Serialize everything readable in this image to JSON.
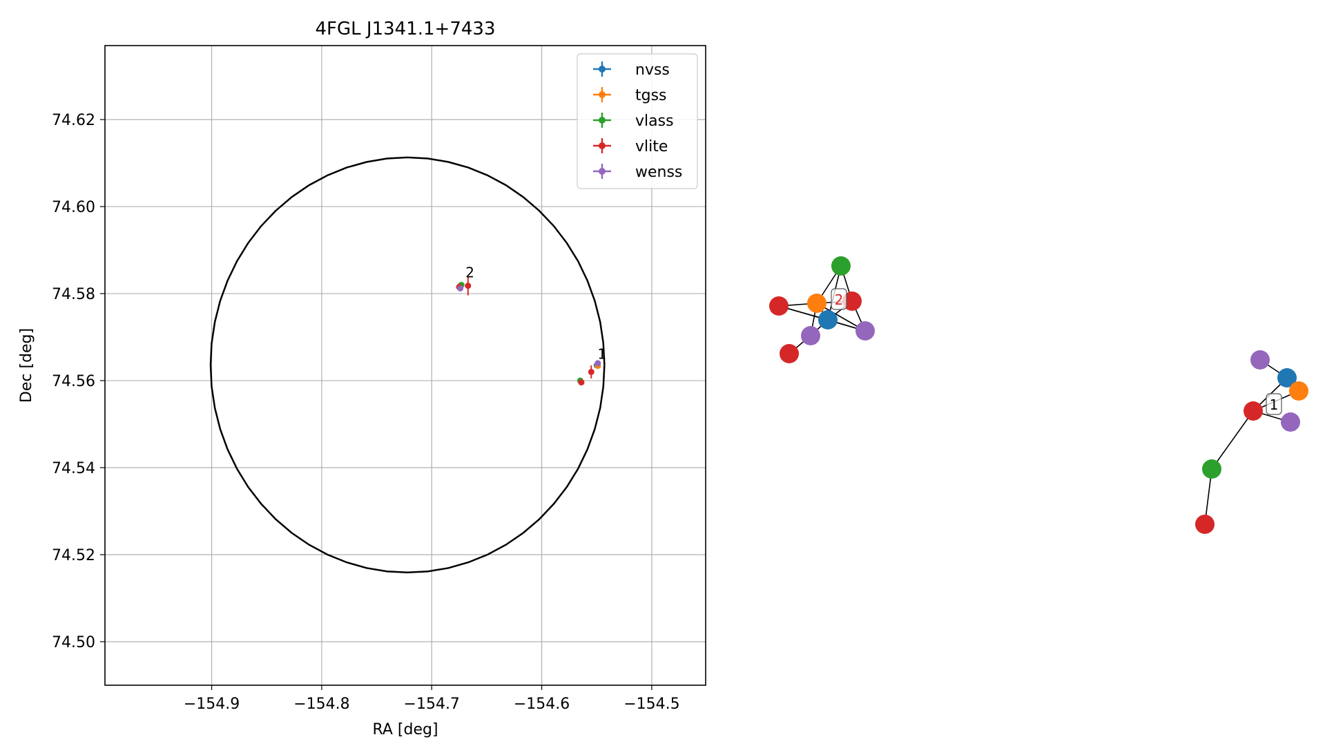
{
  "chart_data": [
    {
      "type": "scatter",
      "title": "4FGL J1341.1+7433",
      "xlabel": "RA [deg]",
      "ylabel": "Dec [deg]",
      "xlim": [
        -154.997,
        -154.451
      ],
      "ylim": [
        74.49,
        74.637
      ],
      "xticks": [
        -154.9,
        -154.8,
        -154.7,
        -154.6,
        -154.5
      ],
      "xtick_labels": [
        "−154.9",
        "−154.8",
        "−154.7",
        "−154.6",
        "−154.5"
      ],
      "yticks": [
        74.5,
        74.52,
        74.54,
        74.56,
        74.58,
        74.6,
        74.62
      ],
      "ytick_labels": [
        "74.50",
        "74.52",
        "74.54",
        "74.56",
        "74.58",
        "74.60",
        "74.62"
      ],
      "grid": true,
      "legend_position": "top-right",
      "ellipse": {
        "center": [
          -154.722,
          74.5636
        ],
        "radius_ra": 0.179,
        "radius_dec": 0.0477,
        "color": "#000000"
      },
      "series": [
        {
          "name": "nvss",
          "color": "#1f77b4",
          "points": [
            {
              "x": -154.674,
              "y": 74.5816
            },
            {
              "x": -154.55,
              "y": 74.5635
            }
          ]
        },
        {
          "name": "tgss",
          "color": "#ff7f0e",
          "points": [
            {
              "x": -154.674,
              "y": 74.5818
            },
            {
              "x": -154.549,
              "y": 74.5634
            }
          ]
        },
        {
          "name": "vlass",
          "color": "#2ca02c",
          "points": [
            {
              "x": -154.673,
              "y": 74.582
            },
            {
              "x": -154.565,
              "y": 74.56
            }
          ]
        },
        {
          "name": "vlite",
          "color": "#d62728",
          "points": [
            {
              "x": -154.675,
              "y": 74.5815,
              "yerr": 0.0008
            },
            {
              "x": -154.667,
              "y": 74.5818,
              "yerr": 0.0022
            },
            {
              "x": -154.555,
              "y": 74.562,
              "yerr": 0.0015
            },
            {
              "x": -154.564,
              "y": 74.5596
            }
          ]
        },
        {
          "name": "wenss",
          "color": "#9467bd",
          "points": [
            {
              "x": -154.674,
              "y": 74.5812
            },
            {
              "x": -154.549,
              "y": 74.564
            }
          ]
        }
      ],
      "annotations": [
        {
          "text": "2",
          "x": -154.668,
          "y": 74.5825
        },
        {
          "text": "1",
          "x": -154.548,
          "y": 74.5637
        }
      ]
    },
    {
      "type": "network",
      "clusters": [
        {
          "label": "2",
          "label_color": "#d62728",
          "nodes": [
            {
              "id": "g",
              "color": "#2ca02c"
            },
            {
              "id": "o",
              "color": "#ff7f0e"
            },
            {
              "id": "r1",
              "color": "#d62728"
            },
            {
              "id": "r2",
              "color": "#d62728"
            },
            {
              "id": "b",
              "color": "#1f77b4"
            },
            {
              "id": "p1",
              "color": "#9467bd"
            },
            {
              "id": "p2",
              "color": "#9467bd"
            },
            {
              "id": "r3",
              "color": "#d62728"
            }
          ],
          "edges": [
            [
              "g",
              "o"
            ],
            [
              "g",
              "r1"
            ],
            [
              "g",
              "b"
            ],
            [
              "o",
              "r2"
            ],
            [
              "o",
              "r1"
            ],
            [
              "o",
              "b"
            ],
            [
              "o",
              "p1"
            ],
            [
              "o",
              "p2"
            ],
            [
              "r2",
              "b"
            ],
            [
              "r2",
              "p1"
            ],
            [
              "b",
              "p1"
            ],
            [
              "b",
              "p2"
            ],
            [
              "b",
              "r1"
            ],
            [
              "r1",
              "p1"
            ],
            [
              "r3",
              "p2"
            ]
          ]
        },
        {
          "label": "1",
          "label_color": "#000000",
          "nodes": [
            {
              "id": "p1",
              "color": "#9467bd"
            },
            {
              "id": "b",
              "color": "#1f77b4"
            },
            {
              "id": "o",
              "color": "#ff7f0e"
            },
            {
              "id": "r1",
              "color": "#d62728"
            },
            {
              "id": "p2",
              "color": "#9467bd"
            },
            {
              "id": "g",
              "color": "#2ca02c"
            },
            {
              "id": "r2",
              "color": "#d62728"
            }
          ],
          "edges": [
            [
              "p1",
              "b"
            ],
            [
              "b",
              "o"
            ],
            [
              "r1",
              "b"
            ],
            [
              "r1",
              "p2"
            ],
            [
              "r1",
              "o"
            ],
            [
              "r1",
              "g"
            ],
            [
              "g",
              "r2"
            ]
          ]
        }
      ]
    }
  ]
}
